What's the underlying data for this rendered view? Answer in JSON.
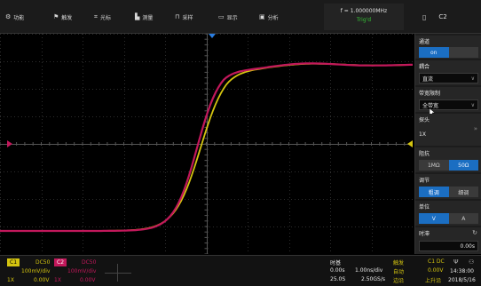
{
  "toolbar": {
    "items": [
      {
        "icon": "gear-icon",
        "label": "功能"
      },
      {
        "icon": "flag-icon",
        "label": "触发"
      },
      {
        "icon": "crosshair-icon",
        "label": "光标"
      },
      {
        "icon": "measure-icon",
        "label": "测量"
      },
      {
        "icon": "wave-icon",
        "label": "采样"
      },
      {
        "icon": "display-icon",
        "label": "显示"
      },
      {
        "icon": "analysis-icon",
        "label": "分析"
      }
    ]
  },
  "timebase": {
    "frequency": "f = 1.000000MHz",
    "trigger_state": "Trig'd"
  },
  "channel_title": "C2",
  "panel": {
    "channel_label": "通道",
    "channel_state": "on",
    "coupling_label": "耦合",
    "coupling_value": "直流",
    "bw_label": "带宽限制",
    "bw_value": "全带宽",
    "probe_label": "探头",
    "probe_value": "1X",
    "impedance_label": "阻抗",
    "impedance_options": [
      "1MΩ",
      "50Ω"
    ],
    "adjust_label": "调节",
    "adjust_options": [
      "粗调",
      "细调"
    ],
    "unit_label": "单位",
    "unit_options": [
      "V",
      "A"
    ],
    "skew_label": "时滞",
    "skew_value": "0.00s"
  },
  "status": {
    "c1_badge": "C1",
    "c1_coupling": "DC50",
    "c1_scale": "100mV/div",
    "c1_probe": "1X",
    "c1_offset": "0.00V",
    "c2_badge": "C2",
    "c2_coupling": "DC50",
    "c2_scale": "100mV/div",
    "c2_probe": "1X",
    "c2_offset": "0.00V",
    "timebase_label": "时基",
    "time_delay": "0.00s",
    "time_scale": "1.00ns/div",
    "mem_depth": "25.0S",
    "sample_rate": "2.50GS/s",
    "trigger_label": "触发",
    "trigger_mode": "自动",
    "trigger_edge": "边沿",
    "trig_src": "C1 DC",
    "trig_level": "0.00V",
    "trig_slope": "上升沿",
    "time": "14:38:00",
    "date": "2018/5/16"
  },
  "colors": {
    "c1": "#d4c410",
    "c2": "#c2185b",
    "accent": "#1b6ec2"
  }
}
